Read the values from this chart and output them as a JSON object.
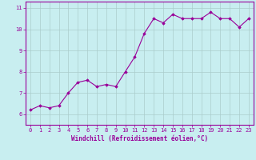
{
  "x": [
    0,
    1,
    2,
    3,
    4,
    5,
    6,
    7,
    8,
    9,
    10,
    11,
    12,
    13,
    14,
    15,
    16,
    17,
    18,
    19,
    20,
    21,
    22,
    23
  ],
  "y": [
    6.2,
    6.4,
    6.3,
    6.4,
    7.0,
    7.5,
    7.6,
    7.3,
    7.4,
    7.3,
    8.0,
    8.7,
    9.8,
    10.5,
    10.3,
    10.7,
    10.5,
    10.5,
    10.5,
    10.8,
    10.5,
    10.5,
    10.1,
    10.5
  ],
  "line_color": "#990099",
  "marker": "D",
  "marker_size": 1.8,
  "bg_color": "#c8eef0",
  "grid_color": "#aacccc",
  "xlabel": "Windchill (Refroidissement éolien,°C)",
  "xlabel_color": "#990099",
  "tick_color": "#990099",
  "spine_color": "#990099",
  "xlim": [
    -0.5,
    23.5
  ],
  "ylim": [
    5.5,
    11.3
  ],
  "yticks": [
    6,
    7,
    8,
    9,
    10,
    11
  ],
  "xticks": [
    0,
    1,
    2,
    3,
    4,
    5,
    6,
    7,
    8,
    9,
    10,
    11,
    12,
    13,
    14,
    15,
    16,
    17,
    18,
    19,
    20,
    21,
    22,
    23
  ],
  "tick_fontsize": 5.0,
  "xlabel_fontsize": 5.5,
  "line_width": 0.8
}
